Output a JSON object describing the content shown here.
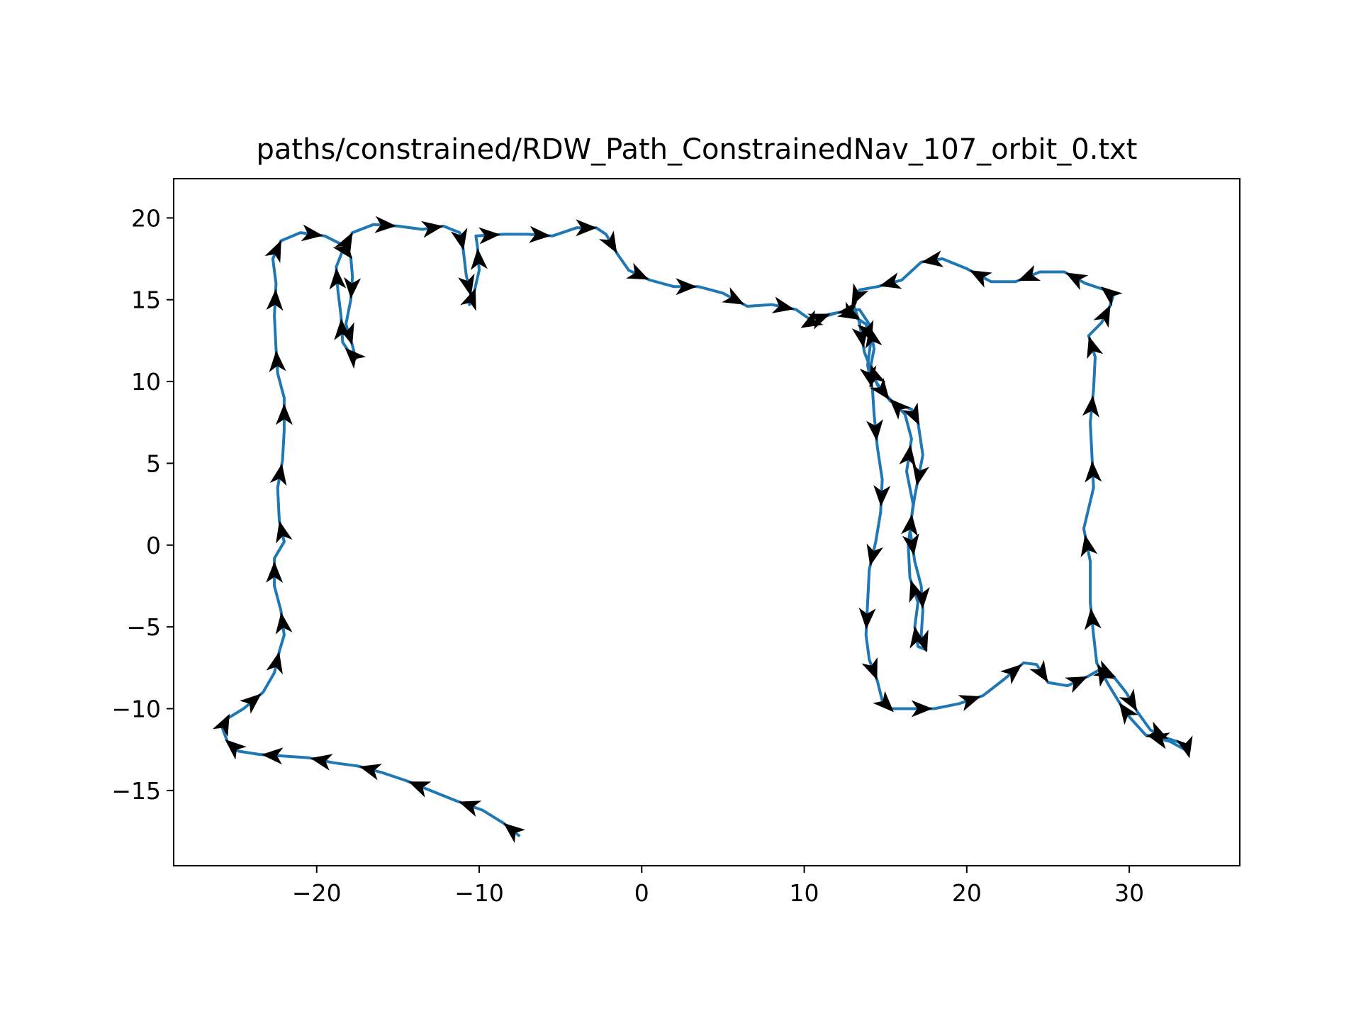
{
  "chart_data": {
    "type": "line",
    "title": "paths/constrained/RDW_Path_ConstrainedNav_107_orbit_0.txt",
    "xlabel": "",
    "ylabel": "",
    "xlim": [
      -28.8,
      36.8
    ],
    "ylim": [
      -19.6,
      22.4
    ],
    "x_ticks": [
      -20,
      -10,
      0,
      10,
      20,
      30
    ],
    "y_ticks": [
      -15,
      -10,
      -5,
      0,
      5,
      10,
      15,
      20
    ],
    "x_tick_labels": [
      "−20",
      "−10",
      "0",
      "10",
      "20",
      "30"
    ],
    "y_tick_labels": [
      "−15",
      "−10",
      "−5",
      "0",
      "5",
      "10",
      "15",
      "20"
    ],
    "grid": false,
    "legend": "none",
    "colors": {
      "path": "#1f77b4",
      "arrows": "#000000",
      "frame": "#000000"
    },
    "series": [
      {
        "points": [
          [
            -7.5,
            -17.8
          ],
          [
            -8.5,
            -17.0
          ],
          [
            -9.8,
            -16.2
          ],
          [
            -11.5,
            -15.6
          ],
          [
            -13.0,
            -15.0
          ],
          [
            -14.5,
            -14.4
          ],
          [
            -16.0,
            -13.9
          ],
          [
            -17.5,
            -13.5
          ],
          [
            -19.0,
            -13.3
          ],
          [
            -20.5,
            -13.0
          ],
          [
            -22.0,
            -12.9
          ],
          [
            -23.5,
            -12.8
          ],
          [
            -24.8,
            -12.6
          ],
          [
            -25.5,
            -12.0
          ],
          [
            -25.8,
            -11.2
          ],
          [
            -25.5,
            -10.6
          ],
          [
            -24.5,
            -10.0
          ],
          [
            -23.3,
            -9.0
          ],
          [
            -22.6,
            -7.8
          ],
          [
            -22.3,
            -6.5
          ],
          [
            -22.0,
            -5.5
          ],
          [
            -22.2,
            -4.0
          ],
          [
            -22.6,
            -2.5
          ],
          [
            -22.6,
            -0.8
          ],
          [
            -22.0,
            0.2
          ],
          [
            -22.3,
            1.5
          ],
          [
            -22.4,
            3.5
          ],
          [
            -22.1,
            5.2
          ],
          [
            -22.0,
            7.0
          ],
          [
            -22.0,
            9.0
          ],
          [
            -22.4,
            10.5
          ],
          [
            -22.5,
            12.0
          ],
          [
            -22.6,
            14.0
          ],
          [
            -22.5,
            16.0
          ],
          [
            -22.7,
            17.5
          ],
          [
            -22.2,
            18.6
          ],
          [
            -21.0,
            19.1
          ],
          [
            -19.5,
            18.9
          ],
          [
            -18.5,
            18.4
          ],
          [
            -17.9,
            17.6
          ],
          [
            -17.8,
            16.4
          ],
          [
            -17.9,
            15.0
          ],
          [
            -18.2,
            13.5
          ],
          [
            -17.8,
            12.2
          ],
          [
            -17.6,
            11.4
          ],
          [
            -18.0,
            11.8
          ],
          [
            -18.4,
            12.4
          ],
          [
            -18.5,
            14.0
          ],
          [
            -18.7,
            15.6
          ],
          [
            -18.8,
            17.0
          ],
          [
            -18.4,
            18.0
          ],
          [
            -17.8,
            19.1
          ],
          [
            -16.5,
            19.6
          ],
          [
            -15.0,
            19.5
          ],
          [
            -13.5,
            19.3
          ],
          [
            -12.2,
            19.5
          ],
          [
            -11.2,
            19.1
          ],
          [
            -11.0,
            18.2
          ],
          [
            -10.8,
            16.5
          ],
          [
            -10.5,
            15.2
          ],
          [
            -10.6,
            14.7
          ],
          [
            -10.3,
            15.5
          ],
          [
            -10.0,
            16.8
          ],
          [
            -10.1,
            18.2
          ],
          [
            -10.2,
            18.9
          ],
          [
            -8.5,
            19.0
          ],
          [
            -7.0,
            19.0
          ],
          [
            -5.5,
            18.9
          ],
          [
            -4.0,
            19.4
          ],
          [
            -2.8,
            19.4
          ],
          [
            -2.2,
            19.0
          ],
          [
            -1.5,
            17.8
          ],
          [
            -0.8,
            16.8
          ],
          [
            0.5,
            16.2
          ],
          [
            2.0,
            15.8
          ],
          [
            3.5,
            15.8
          ],
          [
            5.0,
            15.4
          ],
          [
            6.5,
            14.6
          ],
          [
            8.0,
            14.7
          ],
          [
            9.5,
            14.4
          ],
          [
            10.5,
            13.7
          ],
          [
            11.5,
            14.1
          ],
          [
            12.5,
            14.3
          ],
          [
            13.2,
            13.9
          ],
          [
            13.8,
            13.5
          ],
          [
            14.1,
            12.5
          ],
          [
            13.9,
            11.0
          ],
          [
            14.2,
            9.5
          ],
          [
            14.3,
            8.0
          ],
          [
            14.5,
            6.0
          ],
          [
            14.8,
            4.0
          ],
          [
            14.7,
            2.0
          ],
          [
            14.4,
            0.2
          ],
          [
            14.0,
            -1.5
          ],
          [
            13.9,
            -3.5
          ],
          [
            13.8,
            -5.5
          ],
          [
            14.0,
            -7.0
          ],
          [
            14.5,
            -8.3
          ],
          [
            14.8,
            -9.5
          ],
          [
            15.3,
            -10.0
          ],
          [
            16.5,
            -10.0
          ],
          [
            18.0,
            -10.0
          ],
          [
            19.5,
            -9.7
          ],
          [
            21.0,
            -9.2
          ],
          [
            22.3,
            -8.2
          ],
          [
            23.5,
            -7.2
          ],
          [
            24.3,
            -7.3
          ],
          [
            25.0,
            -8.4
          ],
          [
            26.2,
            -8.6
          ],
          [
            27.5,
            -8.0
          ],
          [
            28.2,
            -7.6
          ],
          [
            29.0,
            -8.0
          ],
          [
            29.8,
            -9.0
          ],
          [
            30.5,
            -10.2
          ],
          [
            31.3,
            -11.3
          ],
          [
            32.3,
            -11.8
          ],
          [
            33.5,
            -12.2
          ],
          [
            33.6,
            -12.6
          ],
          [
            32.5,
            -12.0
          ],
          [
            31.0,
            -11.6
          ],
          [
            30.0,
            -10.5
          ],
          [
            29.5,
            -9.8
          ],
          [
            28.7,
            -8.5
          ],
          [
            28.0,
            -7.2
          ],
          [
            27.8,
            -5.5
          ],
          [
            27.6,
            -3.5
          ],
          [
            27.6,
            -1.0
          ],
          [
            27.2,
            1.0
          ],
          [
            27.8,
            3.5
          ],
          [
            27.7,
            5.5
          ],
          [
            27.6,
            7.5
          ],
          [
            27.8,
            9.5
          ],
          [
            27.9,
            11.5
          ],
          [
            27.5,
            12.8
          ],
          [
            28.3,
            13.6
          ],
          [
            28.8,
            14.6
          ],
          [
            29.0,
            15.2
          ],
          [
            28.5,
            15.6
          ],
          [
            27.3,
            16.0
          ],
          [
            26.0,
            16.7
          ],
          [
            24.5,
            16.7
          ],
          [
            23.0,
            16.1
          ],
          [
            21.5,
            16.1
          ],
          [
            20.0,
            16.9
          ],
          [
            18.5,
            17.5
          ],
          [
            17.2,
            17.3
          ],
          [
            16.0,
            16.2
          ],
          [
            14.5,
            15.8
          ],
          [
            13.4,
            15.6
          ],
          [
            13.0,
            14.8
          ],
          [
            13.4,
            13.6
          ],
          [
            13.7,
            11.8
          ],
          [
            14.4,
            10.0
          ],
          [
            15.3,
            8.8
          ],
          [
            16.6,
            8.3
          ],
          [
            17.0,
            7.5
          ],
          [
            17.3,
            5.5
          ],
          [
            16.8,
            3.0
          ],
          [
            16.5,
            1.0
          ],
          [
            16.8,
            -1.0
          ],
          [
            17.2,
            -2.5
          ],
          [
            17.3,
            -4.0
          ],
          [
            17.2,
            -5.5
          ],
          [
            17.5,
            -6.4
          ],
          [
            17.0,
            -6.2
          ],
          [
            16.8,
            -5.0
          ],
          [
            17.0,
            -3.5
          ],
          [
            16.5,
            -2.0
          ],
          [
            16.4,
            0.0
          ],
          [
            16.7,
            2.5
          ],
          [
            16.3,
            4.5
          ],
          [
            16.6,
            6.5
          ],
          [
            16.2,
            8.0
          ],
          [
            15.2,
            9.0
          ],
          [
            14.5,
            9.8
          ],
          [
            14.1,
            11.0
          ],
          [
            14.3,
            12.0
          ],
          [
            14.0,
            13.5
          ],
          [
            13.4,
            14.4
          ],
          [
            12.0,
            14.2
          ],
          [
            10.7,
            13.8
          ],
          [
            10.0,
            13.4
          ]
        ]
      }
    ]
  }
}
